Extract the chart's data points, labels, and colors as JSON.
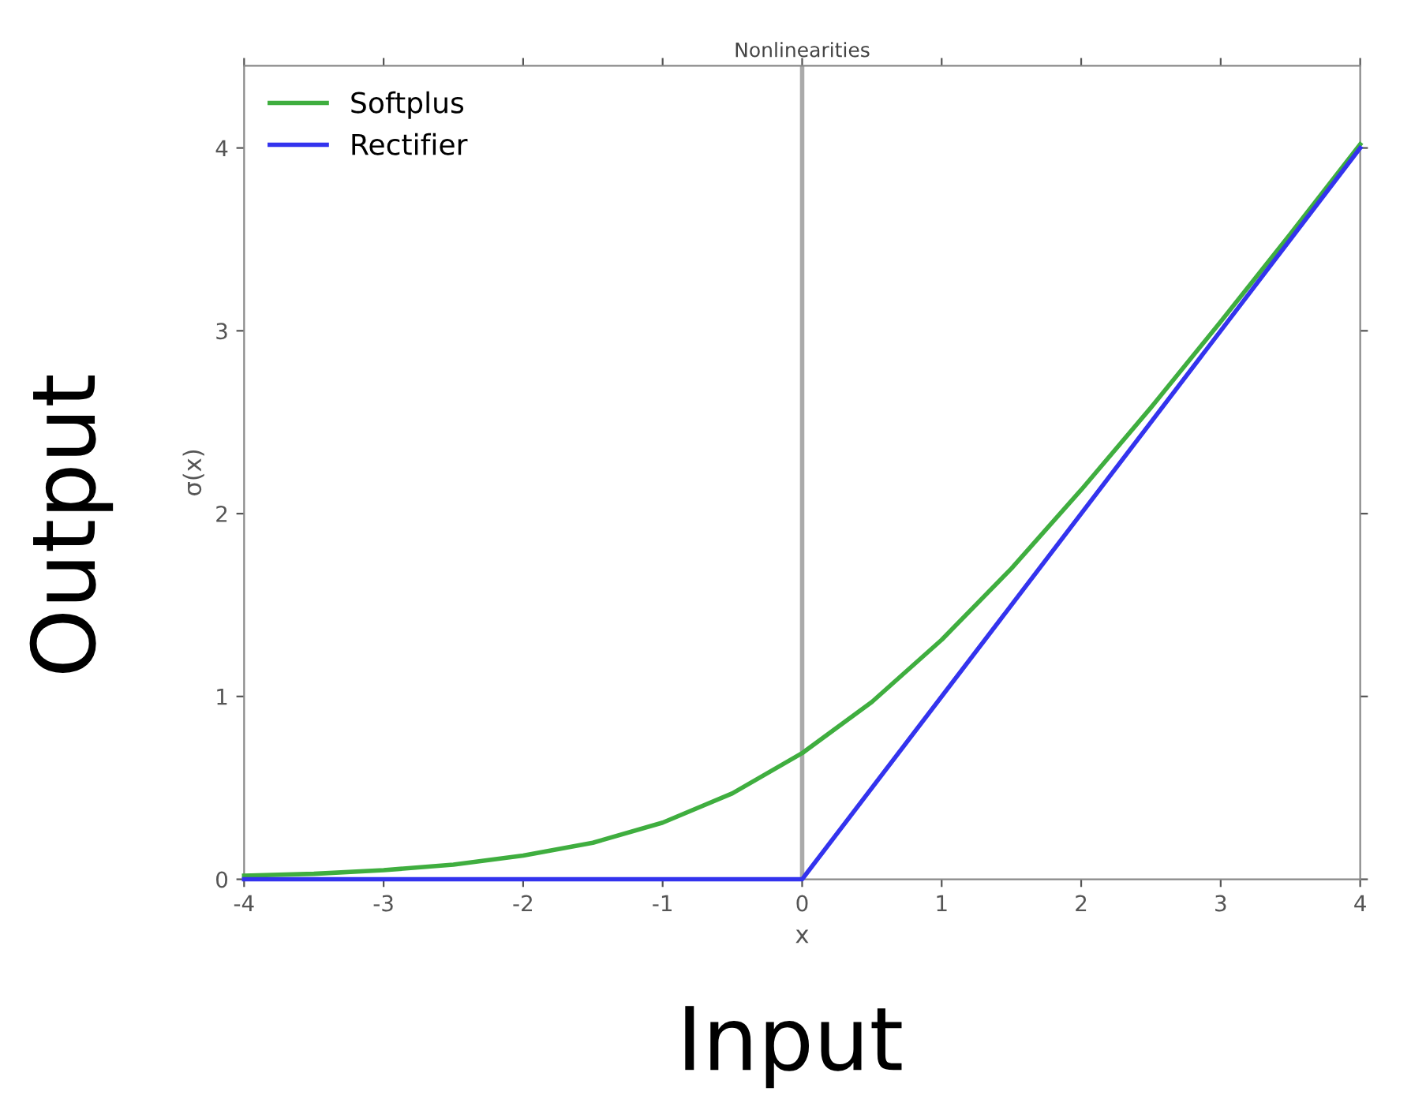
{
  "chart_data": {
    "type": "line",
    "title": "Nonlinearities",
    "xlabel": "x",
    "ylabel": "σ(x)",
    "annotations": [
      "Output",
      "Input"
    ],
    "xlim": [
      -4,
      4
    ],
    "ylim": [
      0,
      4.45
    ],
    "xticks": [
      -4,
      -3,
      -2,
      -1,
      0,
      1,
      2,
      3,
      4
    ],
    "yticks": [
      0,
      1,
      2,
      3,
      4
    ],
    "grid": false,
    "legend": "top left",
    "marker": "none",
    "line_style": "solid",
    "ref_lines": [
      {
        "axis": "x",
        "value": 0,
        "color": "#aaaaaa"
      }
    ],
    "series": [
      {
        "name": "Softplus",
        "color": "#3fae3f",
        "x": [
          -4,
          -3.5,
          -3,
          -2.5,
          -2,
          -1.5,
          -1,
          -0.5,
          0,
          0.5,
          1,
          1.5,
          2,
          2.5,
          3,
          3.5,
          4
        ],
        "values": [
          0.02,
          0.03,
          0.05,
          0.08,
          0.13,
          0.2,
          0.31,
          0.47,
          0.69,
          0.97,
          1.31,
          1.7,
          2.13,
          2.58,
          3.05,
          3.53,
          4.02
        ]
      },
      {
        "name": "Rectifier",
        "color": "#3333ee",
        "x": [
          -4,
          0,
          4
        ],
        "values": [
          0,
          0,
          4
        ]
      }
    ]
  }
}
